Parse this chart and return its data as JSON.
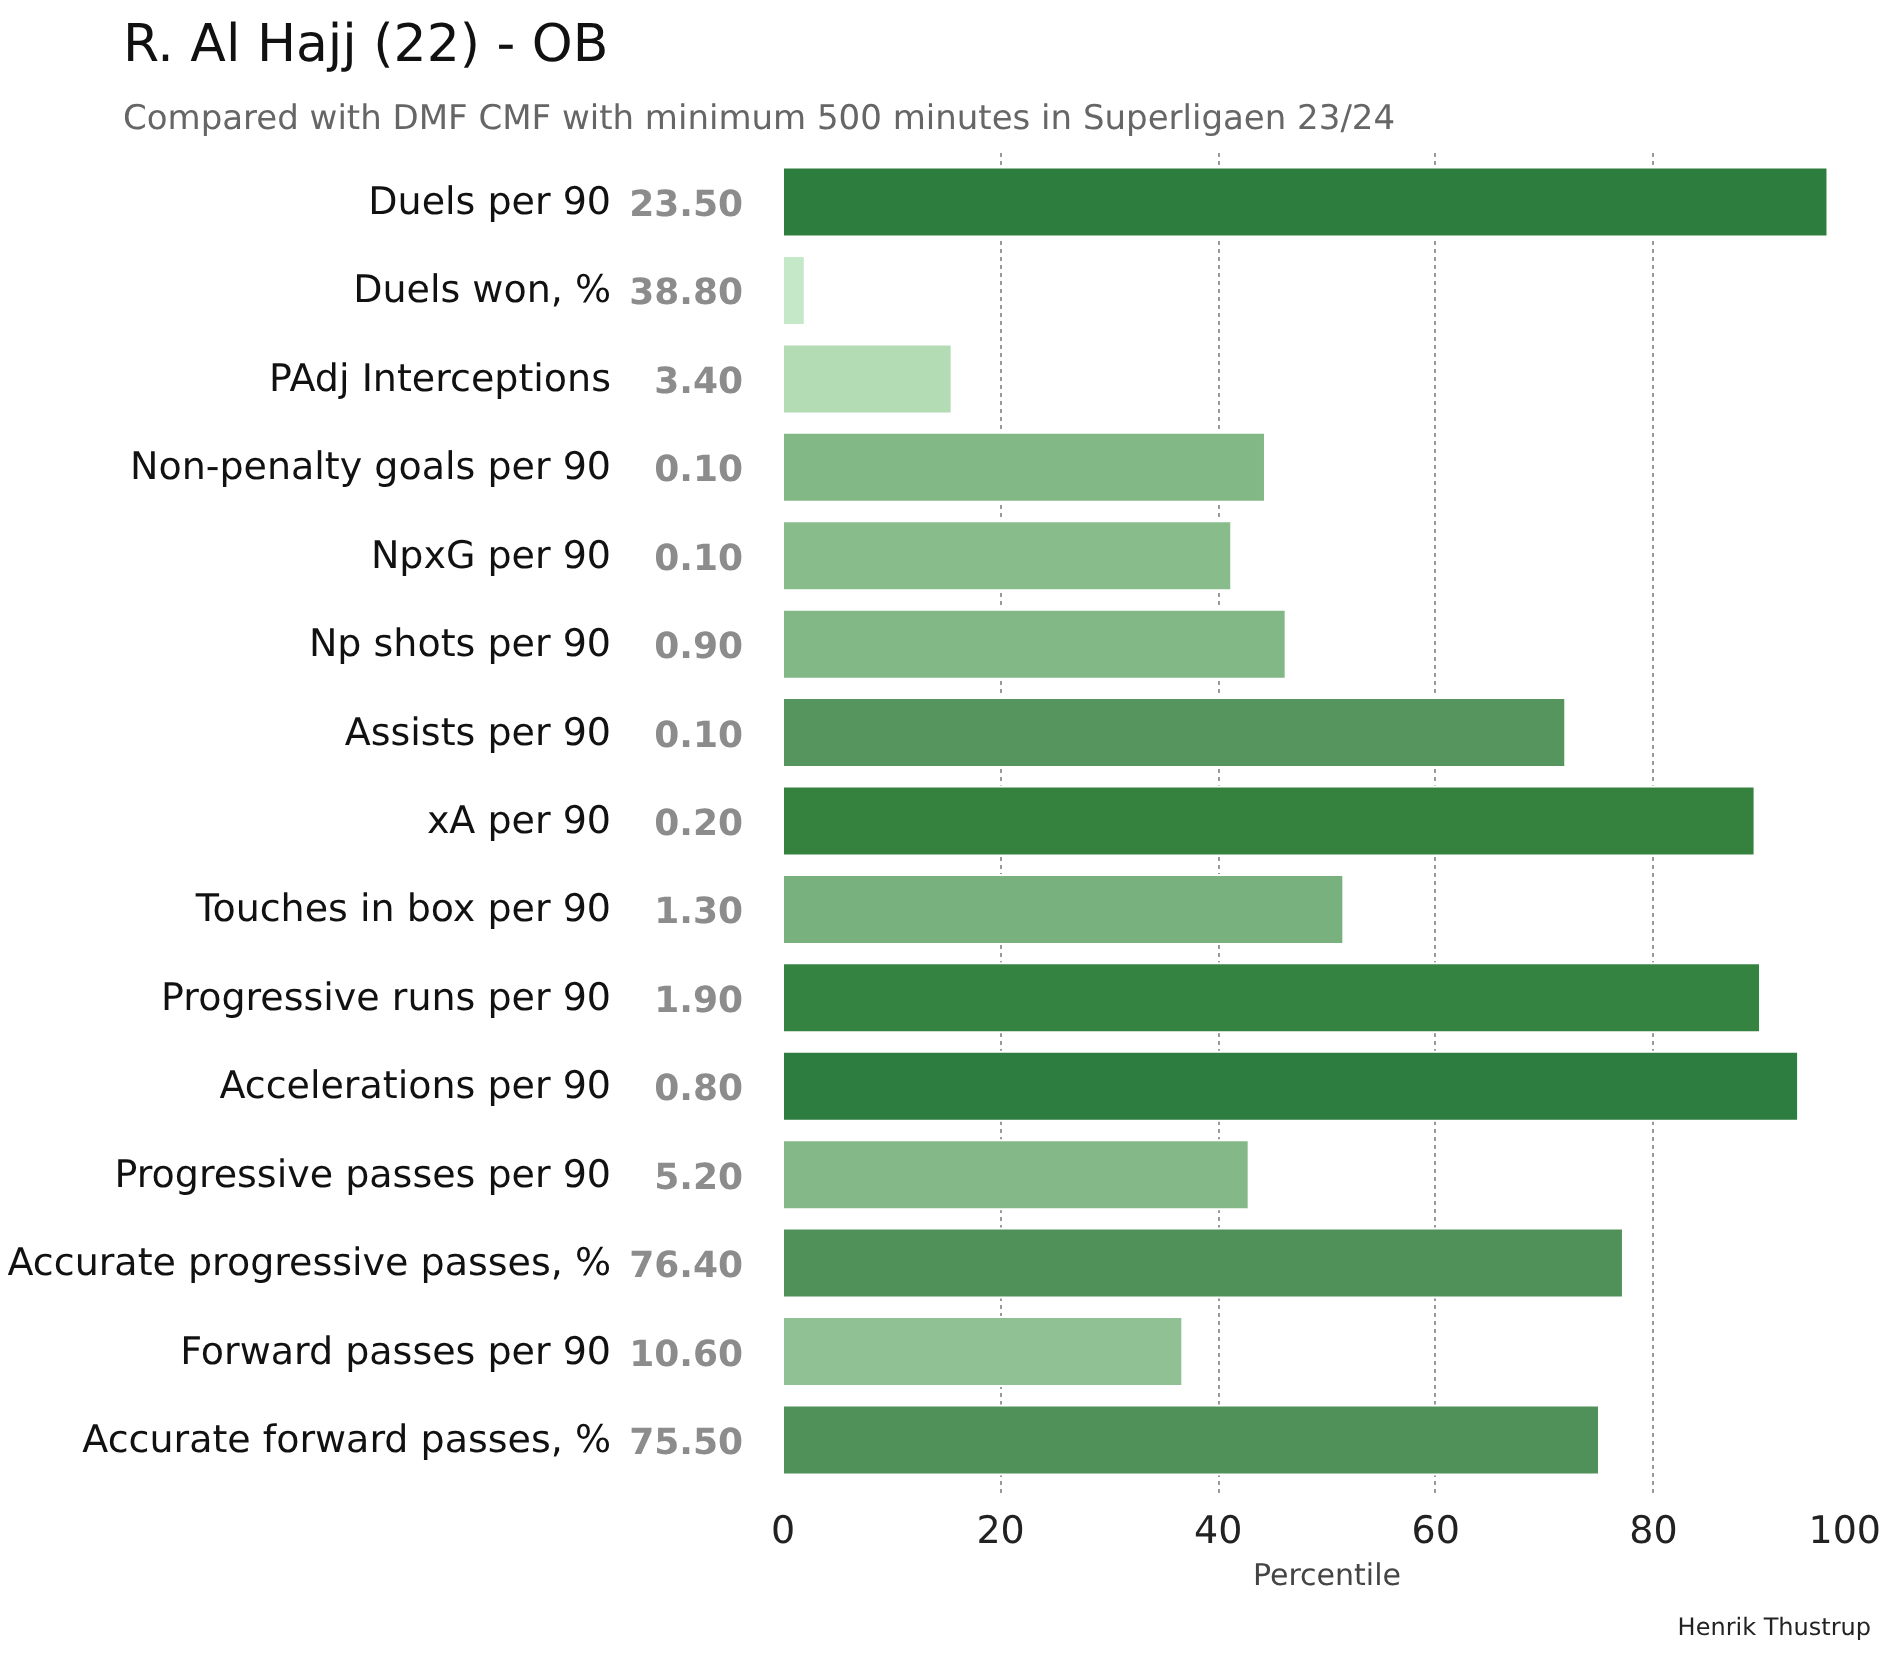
{
  "chart_data": {
    "type": "bar",
    "orientation": "horizontal",
    "title": "R. Al Hajj (22) - OB",
    "subtitle": "Compared with DMF CMF with minimum 500 minutes in Superligaen 23/24",
    "xlabel": "Percentile",
    "annotations": [
      "Henrik Thustrup",
      "23.50",
      "38.80",
      "3.40",
      "0.10",
      "0.10",
      "0.90",
      "0.10",
      "0.20",
      "1.30",
      "1.90",
      "0.80",
      "5.20",
      "76.40",
      "10.60",
      "75.50"
    ],
    "categories": [
      "Duels per 90",
      "Duels won, %",
      "PAdj Interceptions",
      "Non-penalty goals per 90",
      "NpxG per 90",
      "Np shots per 90",
      "Assists per 90",
      "xA per 90",
      "Touches in box per 90",
      "Progressive runs per 90",
      "Accelerations per 90",
      "Progressive passes per 90",
      "Accurate progressive passes, %",
      "Forward passes per 90",
      "Accurate forward passes, %"
    ],
    "values": [
      96,
      2,
      15.5,
      44.3,
      41.2,
      46.2,
      71.9,
      89.3,
      51.5,
      89.8,
      93.3,
      42.8,
      77.2,
      36.7,
      75.0
    ],
    "colors": [
      "#2d7d3f",
      "#c5e8c9",
      "#b3dbb4",
      "#82b786",
      "#89bc8b",
      "#82b786",
      "#56965e",
      "#35823f",
      "#78b07e",
      "#358341",
      "#2e7d40",
      "#84b888",
      "#4f9158",
      "#90c194",
      "#4f9158"
    ],
    "xlim": [
      0,
      100
    ],
    "xticks": [
      0,
      20,
      40,
      60,
      80,
      100
    ],
    "grid": "x"
  }
}
